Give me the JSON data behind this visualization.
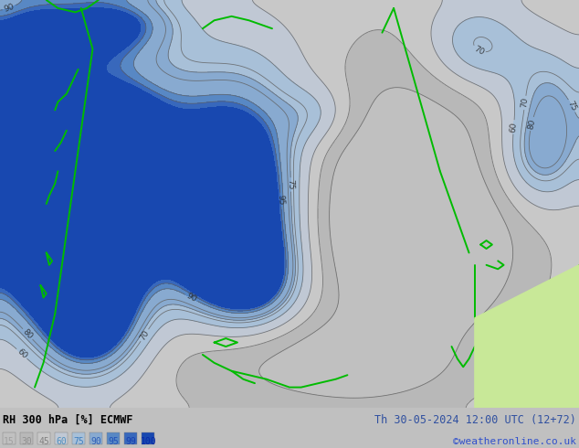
{
  "title_left": "RH 300 hPa [%] ECMWF",
  "title_right": "Th 30-05-2024 12:00 UTC (12+72)",
  "credit": "©weatheronline.co.uk",
  "levels": [
    15,
    30,
    45,
    60,
    75,
    90,
    95,
    99,
    100
  ],
  "fill_levels": [
    0,
    15,
    30,
    45,
    60,
    75,
    90,
    95,
    99,
    105
  ],
  "fill_colors": [
    "#c0c0c0",
    "#b8b8b8",
    "#c8c8c8",
    "#c0c8d4",
    "#a8c0d8",
    "#88aad0",
    "#5888c4",
    "#3868bc",
    "#1848b0"
  ],
  "contour_levels": [
    15,
    30,
    45,
    60,
    70,
    75,
    80,
    90,
    95
  ],
  "contour_color": "#606060",
  "coast_color": "#00bb00",
  "land_color": "#c8e898",
  "bg_color": "#c0c0c0",
  "bar_color": "#e0e0e0",
  "legend_values": [
    "15",
    "30",
    "45",
    "60",
    "75",
    "90",
    "95",
    "99",
    "100"
  ],
  "legend_text_colors": [
    "#a0a0a0",
    "#909090",
    "#808080",
    "#5090c0",
    "#4080c0",
    "#3060b8",
    "#2050b8",
    "#1840b0",
    "#0828a8"
  ],
  "figsize": [
    6.34,
    4.9
  ],
  "dpi": 100
}
